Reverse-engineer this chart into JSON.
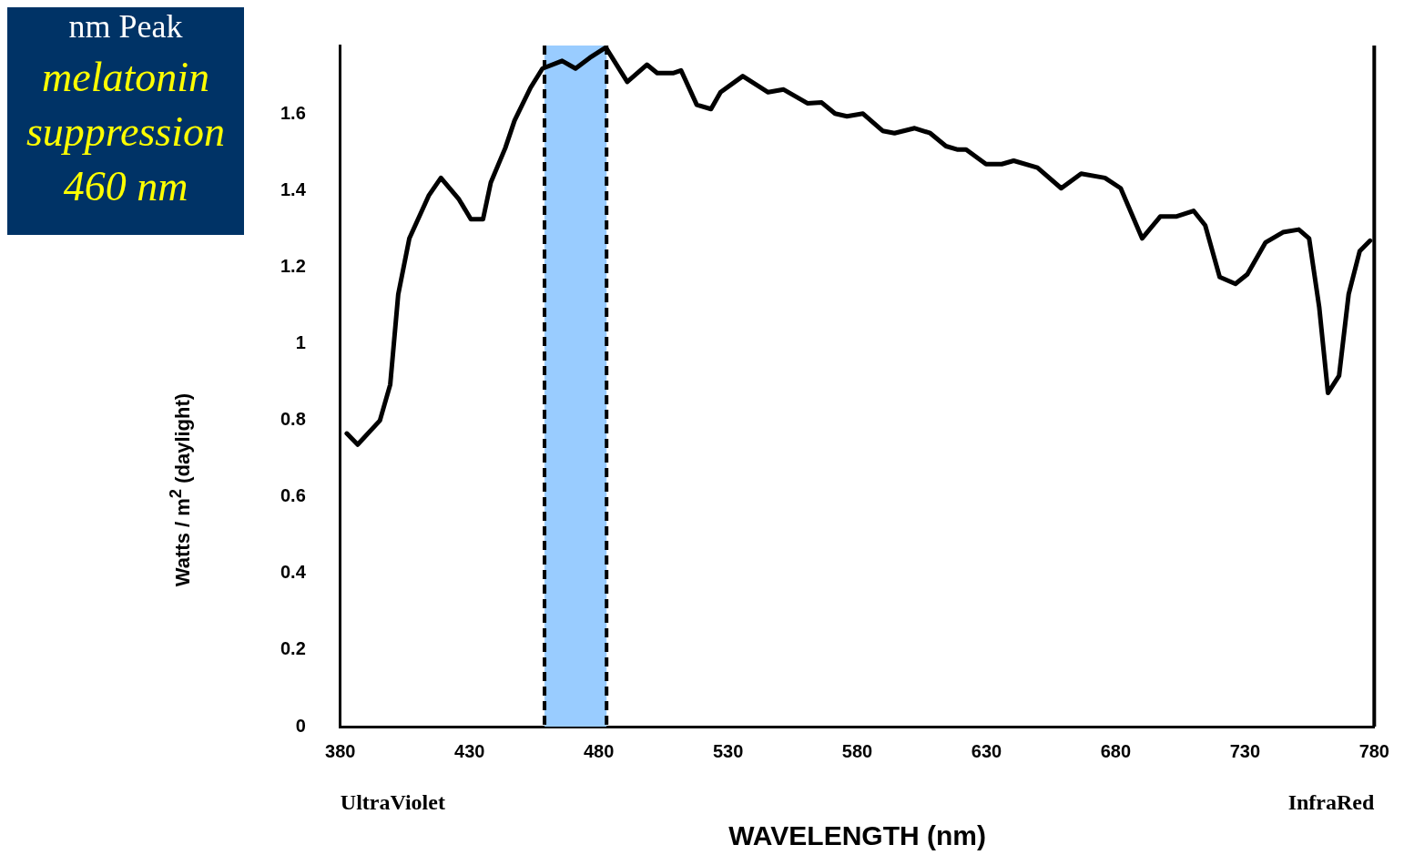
{
  "chart_data": {
    "type": "line",
    "xlabel": "WAVELENGTH (nm)",
    "ylabel": "Watts / m$^{2}$ (daylight)",
    "annotations": [
      "nm Peak",
      "melatonin\nsuppression\n460 nm",
      "UltraViolet",
      "InfraRed"
    ],
    "xlim": [
      380,
      780
    ],
    "xticks": [
      380,
      430,
      480,
      530,
      580,
      630,
      680,
      730,
      780
    ],
    "ylim": [
      0,
      1.78
    ],
    "yticks": [
      0,
      0.2,
      0.4,
      0.6,
      0.8,
      1,
      1.2,
      1.4,
      1.6
    ],
    "grid": false,
    "legend": false,
    "marker": "none",
    "line_style": "solid",
    "bands": [
      {
        "axis": "x",
        "from": 459,
        "to": 483,
        "color": "#99ccff"
      }
    ],
    "ref_lines": [
      {
        "axis": "x",
        "value": 459,
        "color": "#000000",
        "line_style": "dashed"
      },
      {
        "axis": "x",
        "value": 483,
        "color": "#000000",
        "line_style": "dashed"
      }
    ],
    "series": [
      {
        "color": "#000000",
        "x": [
          382.5,
          386.7,
          395.3,
          399.3,
          402.4,
          406.7,
          414.3,
          418.9,
          425.9,
          430.5,
          435.2,
          438.2,
          443.8,
          447.4,
          453.6,
          458.2,
          465.8,
          471,
          476.5,
          482.7,
          491,
          498.6,
          502.6,
          508.7,
          511.8,
          517.9,
          523.4,
          527.1,
          535.7,
          545.5,
          551.5,
          560.7,
          566.2,
          571.4,
          576,
          582.2,
          589.8,
          594.4,
          602.2,
          608.2,
          614.3,
          618.9,
          622.1,
          629.8,
          635.9,
          640.5,
          649.7,
          658.9,
          666.6,
          675.8,
          681.9,
          690.2,
          697.2,
          703.3,
          710.1,
          714.6,
          720.2,
          726.3,
          730.9,
          737.9,
          744.7,
          750.8,
          754.8,
          758.7,
          762.1,
          766.4,
          770.1,
          774.4,
          778.4
        ],
        "values": [
          0.766,
          0.737,
          0.8,
          0.894,
          1.13,
          1.276,
          1.389,
          1.434,
          1.378,
          1.326,
          1.326,
          1.422,
          1.512,
          1.584,
          1.67,
          1.72,
          1.74,
          1.72,
          1.748,
          1.775,
          1.685,
          1.73,
          1.708,
          1.708,
          1.715,
          1.625,
          1.614,
          1.658,
          1.7,
          1.658,
          1.665,
          1.629,
          1.631,
          1.602,
          1.595,
          1.602,
          1.557,
          1.551,
          1.564,
          1.551,
          1.517,
          1.508,
          1.508,
          1.47,
          1.47,
          1.479,
          1.461,
          1.407,
          1.445,
          1.434,
          1.407,
          1.276,
          1.333,
          1.333,
          1.348,
          1.31,
          1.175,
          1.157,
          1.182,
          1.265,
          1.292,
          1.299,
          1.276,
          1.097,
          0.872,
          0.917,
          1.13,
          1.243,
          1.27
        ]
      }
    ]
  }
}
